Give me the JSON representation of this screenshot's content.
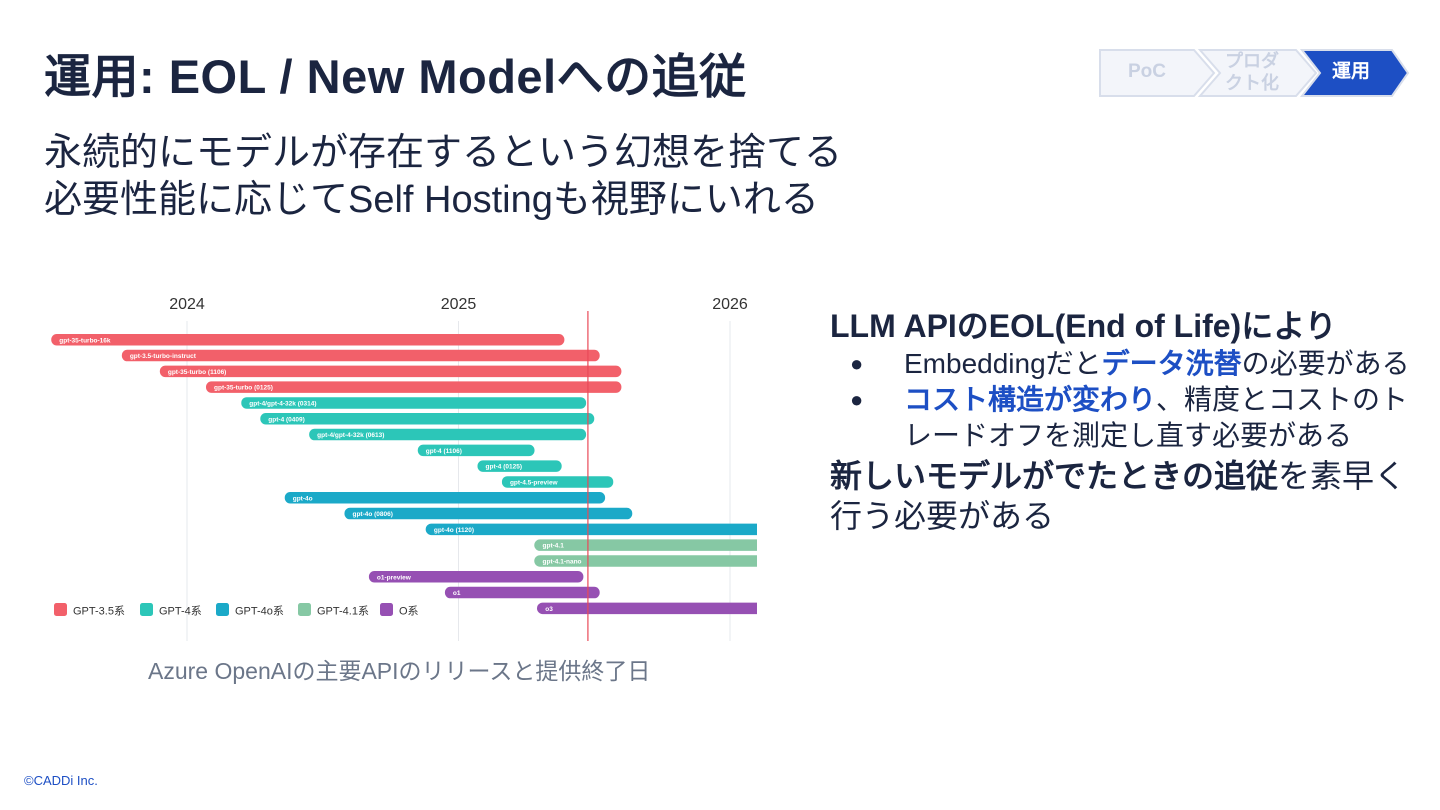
{
  "slide": {
    "title": "運用: EOL / New Modelへの追従",
    "subtitle_lines": [
      "永続的にモデルが存在するという幻想を捨てる",
      "必要性能に応じてSelf Hostingも視野にいれる"
    ],
    "footer": "©CADDi Inc."
  },
  "stepper": {
    "steps": [
      {
        "label": "PoC",
        "active": false
      },
      {
        "label": "プロダクト化",
        "active": false
      },
      {
        "label": "運用",
        "active": true
      }
    ],
    "colors": {
      "active": "#1d4fc4",
      "inactive_fill": "#f3f5fa",
      "inactive_stroke": "#d8deeb",
      "inactive_text": "#c9d1e2"
    }
  },
  "chart_data": {
    "type": "gantt",
    "title": "",
    "caption": "Azure OpenAIの主要APIのリリースと提供終了日",
    "x_axis": {
      "ticks": [
        "2024",
        "2025",
        "2026"
      ],
      "range": [
        "2023-06",
        "2026-03"
      ]
    },
    "today_marker": "2025-06",
    "legend": [
      {
        "name": "GPT-3.5系",
        "color": "#f2606a"
      },
      {
        "name": "GPT-4系",
        "color": "#2cc6b8"
      },
      {
        "name": "GPT-4o系",
        "color": "#1ba9c8"
      },
      {
        "name": "GPT-4.1系",
        "color": "#86c8a4"
      },
      {
        "name": "O系",
        "color": "#9650b3"
      }
    ],
    "bars": [
      {
        "label": "gpt-35-turbo-16k",
        "series": "GPT-3.5系",
        "start": 2023.5,
        "end": 2025.39
      },
      {
        "label": "gpt-3.5-turbo-instruct",
        "series": "GPT-3.5系",
        "start": 2023.76,
        "end": 2025.52
      },
      {
        "label": "gpt-35-turbo (1106)",
        "series": "GPT-3.5系",
        "start": 2023.9,
        "end": 2025.6
      },
      {
        "label": "gpt-35-turbo (0125)",
        "series": "GPT-3.5系",
        "start": 2024.07,
        "end": 2025.6
      },
      {
        "label": "gpt-4/gpt-4-32k (0314)",
        "series": "GPT-4系",
        "start": 2024.2,
        "end": 2025.47
      },
      {
        "label": "gpt-4 (0409)",
        "series": "GPT-4系",
        "start": 2024.27,
        "end": 2025.5
      },
      {
        "label": "gpt-4/gpt-4-32k (0613)",
        "series": "GPT-4系",
        "start": 2024.45,
        "end": 2025.47
      },
      {
        "label": "gpt-4 (1106)",
        "series": "GPT-4系",
        "start": 2024.85,
        "end": 2025.28
      },
      {
        "label": "gpt-4 (0125)",
        "series": "GPT-4系",
        "start": 2025.07,
        "end": 2025.38
      },
      {
        "label": "gpt-4.5-preview",
        "series": "GPT-4系",
        "start": 2025.16,
        "end": 2025.57
      },
      {
        "label": "gpt-4o",
        "series": "GPT-4o系",
        "start": 2024.36,
        "end": 2025.54
      },
      {
        "label": "gpt-4o (0806)",
        "series": "GPT-4o系",
        "start": 2024.58,
        "end": 2025.64
      },
      {
        "label": "gpt-4o (1120)",
        "series": "GPT-4o系",
        "start": 2024.88,
        "end": 2026.1
      },
      {
        "label": "gpt-4.1",
        "series": "GPT-4.1系",
        "start": 2025.28,
        "end": 2026.1
      },
      {
        "label": "gpt-4.1-nano",
        "series": "GPT-4.1系",
        "start": 2025.28,
        "end": 2026.1
      },
      {
        "label": "o1-preview",
        "series": "O系",
        "start": 2024.67,
        "end": 2025.46
      },
      {
        "label": "o1",
        "series": "O系",
        "start": 2024.95,
        "end": 2025.52
      },
      {
        "label": "o3",
        "series": "O系",
        "start": 2025.29,
        "end": 2026.1
      }
    ]
  },
  "panel": {
    "heading": "LLM APIのEOL(End of Life)により",
    "bullet_symbol": "●",
    "bullets": [
      {
        "pre": "Embeddingだと",
        "highlight": "データ洗替",
        "post": "の必要がある"
      },
      {
        "pre": "",
        "highlight": "コスト構造が変わり",
        "post": "、精度とコストのトレードオフを測定し直す必要がある"
      }
    ],
    "conclusion_bold": "新しいモデルがでたときの追従",
    "conclusion_rest": "を素早く行う必要がある",
    "colors": {
      "highlight": "#1d4fc4"
    }
  }
}
